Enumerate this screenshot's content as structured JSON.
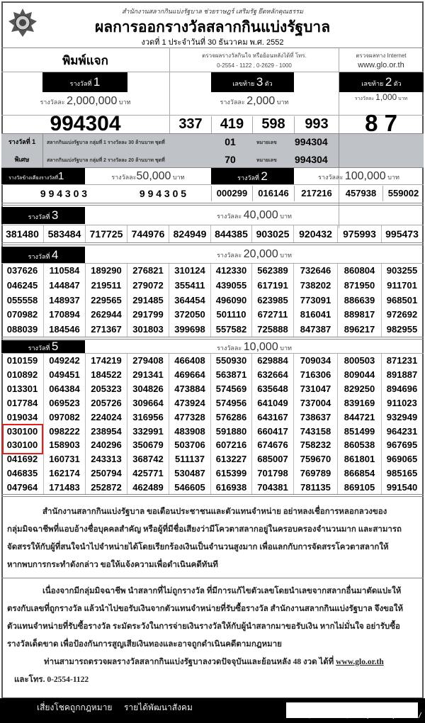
{
  "header": {
    "org_line": "สำนักงานสลากกินแบ่งรัฐบาล   ช่วยราษฎร์   เสริมรัฐ   ยึดหลักคุณธรรม",
    "title": "ผลการออกรางวัลสลากกินแบ่งรัฐบาล",
    "draw_line": "งวดที่  1   ประจำวันที่  30   ธันวาคม พ.ศ.  2552",
    "logo": "glo-emblem"
  },
  "info": {
    "free_print": "พิมพ์แจก",
    "phone_caption": "ตรวจผลรางวัลกินใจ หรือย้อนหลังได้ที่ โทร.",
    "phones": "0-2554 - 1122     ,     0-2629 - 1000",
    "internet_caption": "ตรวจผลทาง Internet",
    "website": "www.glo.or.th"
  },
  "prize1": {
    "label": "รางวัลที่",
    "no": "1",
    "amount_prefix": "รางวัลละ",
    "amount": "2,000,000",
    "unit": "บาท",
    "number": "994304"
  },
  "last3": {
    "label": "เลขท้าย",
    "no": "3",
    "suffix": "ตัว",
    "amount_prefix": "รางวัลละ",
    "amount": "2,000",
    "unit": "บาท",
    "numbers": [
      "337",
      "419",
      "598",
      "993"
    ]
  },
  "last2": {
    "label": "เลขท้าย",
    "no": "2",
    "suffix": "ตัว",
    "amount_prefix": "รางวัลละ",
    "amount": "1,000",
    "unit": "บาท",
    "number": "8 7"
  },
  "special": {
    "title1": "รางวัลที่ 1",
    "title2": "พิเศษ",
    "rows": [
      {
        "desc": "สลากกินแบ่งรัฐบาล กลุ่มที่ 1  รางวัลละ  30 ล้านบาท  ชุดที่",
        "set": "01",
        "num_label": "หมายเลข",
        "number": "994304"
      },
      {
        "desc": "สลากกินแบ่งรัฐบาล กลุ่มที่ 2  รางวัลละ  20 ล้านบาท  ชุดที่",
        "set": "70",
        "num_label": "หมายเลข",
        "number": "994304"
      }
    ]
  },
  "adjacent": {
    "label": "รางวัลข้างเคียงรางวัลที่",
    "no": "1",
    "amount_prefix": "รางวัลละ",
    "amount": "50,000",
    "unit": "บาท",
    "numbers": [
      "9 9 4 3 0 3",
      "9 9 4 3 0 5"
    ]
  },
  "prize2": {
    "label": "รางวัลที่",
    "no": "2",
    "amount_prefix": "รางวัลละ",
    "amount": "100,000",
    "unit": "บาท",
    "numbers": [
      "000299",
      "016146",
      "217216",
      "457938",
      "559002"
    ]
  },
  "prize3": {
    "label": "รางวัลที่",
    "no": "3",
    "amount_prefix": "รางวัลละ",
    "amount": "40,000",
    "unit": "บาท",
    "numbers": [
      "381480",
      "583484",
      "717725",
      "744976",
      "824949",
      "844385",
      "903025",
      "920432",
      "975993",
      "995473"
    ]
  },
  "prize4": {
    "label": "รางวัลที่",
    "no": "4",
    "amount_prefix": "รางวัลละ",
    "amount": "20,000",
    "unit": "บาท",
    "rows": [
      [
        "037626",
        "110584",
        "189290",
        "276821",
        "310124",
        "412330",
        "562389",
        "732646",
        "860804",
        "903255"
      ],
      [
        "046245",
        "144847",
        "219511",
        "279072",
        "355411",
        "439055",
        "617191",
        "738202",
        "871950",
        "911701"
      ],
      [
        "055558",
        "148937",
        "229565",
        "291485",
        "364454",
        "496090",
        "623985",
        "773091",
        "886639",
        "968501"
      ],
      [
        "070982",
        "170894",
        "262944",
        "291799",
        "372050",
        "501110",
        "672711",
        "816041",
        "889817",
        "972692"
      ],
      [
        "088039",
        "184546",
        "271367",
        "301803",
        "399698",
        "557582",
        "725888",
        "847387",
        "896217",
        "982955"
      ]
    ]
  },
  "prize5": {
    "label": "รางวัลที่",
    "no": "5",
    "amount_prefix": "รางวัลละ",
    "amount": "10,000",
    "unit": "บาท",
    "rows": [
      [
        "010159",
        "049242",
        "174219",
        "279408",
        "466408",
        "550930",
        "629884",
        "709034",
        "800503",
        "871231"
      ],
      [
        "010892",
        "049451",
        "184522",
        "291341",
        "469664",
        "563871",
        "632664",
        "716306",
        "809044",
        "891887"
      ],
      [
        "013301",
        "064384",
        "205323",
        "304826",
        "473884",
        "574569",
        "635648",
        "731047",
        "829250",
        "894696"
      ],
      [
        "017784",
        "069523",
        "205726",
        "309664",
        "473924",
        "574956",
        "641049",
        "737004",
        "839169",
        "911023"
      ],
      [
        "019034",
        "097082",
        "224024",
        "316956",
        "477328",
        "576286",
        "643167",
        "738637",
        "844721",
        "932949"
      ],
      [
        "030100",
        "098222",
        "238954",
        "332991",
        "483908",
        "591880",
        "660417",
        "743158",
        "851499",
        "964231"
      ],
      [
        "030100",
        "158903",
        "240296",
        "350679",
        "503706",
        "607216",
        "674676",
        "758232",
        "860538",
        "967695"
      ],
      [
        "041692",
        "160731",
        "243313",
        "368742",
        "511137",
        "613227",
        "685007",
        "759670",
        "861801",
        "969065"
      ],
      [
        "046835",
        "162174",
        "250794",
        "425771",
        "530487",
        "615399",
        "701798",
        "769789",
        "866854",
        "985165"
      ],
      [
        "047964",
        "171483",
        "252872",
        "462489",
        "546605",
        "616938",
        "704381",
        "781135",
        "869105",
        "991540"
      ]
    ],
    "highlight_color": "#e02020"
  },
  "notice": {
    "p1": [
      "สำนักงานสลากกินแบ่งรัฐบาล   ขอเตือนประชาชนและตัวแทนจำหน่าย  อย่าหลงเชื่อการหลอกลวงของ",
      "กลุ่มมิจฉาชีพที่แอบอ้างชื่อบุคคลสำคัญ หรือผู้ที่มีชื่อเสียงว่ามีโควตาสลากอยู่ในครอบครองจำนวนมาก และสามารถ",
      "จัดสรรให้กับผู้ที่สนใจนำไปจำหน่ายได้โดยเรียกร้องเงินเป็นจำนวนสูงมาก      เพื่อแลกกับการจัดสรรโควตาสลากให้",
      "หากพบการกระทำดังกล่าว ขอให้แจ้งความเพื่อดำเนินคดีทันที"
    ],
    "p2": [
      "เนื่องจากมีกลุ่มมิจฉาชีพ   นำสลากที่ไม่ถูกรางวัล   ที่มีการแก้ไขตัวเลขโดยนำเลขจากสลากอื่นมาตัดแปะให้",
      "ตรงกับเลขที่ถูกรางวัล แล้วนำไปขอรับเงินจากตัวแทนจำหน่ายที่รับซื้อรางวัล สำนักงานสลากกินแบ่งรัฐบาล จึงขอให้",
      "ตัวแทนจำหน่ายที่รับซื้อรางวัล  ระมัดระวังในการจ่ายเงินรางวัลให้กับผู้นำสลากมาขอรับเงิน  หากไม่มั่นใจ อย่ารับซื้อ",
      "รางวัลเด็ดขาด เพื่อป้องกันการสูญเสียเงินทองและอาจถูกดำเนินคดีตามกฎหมาย"
    ],
    "p3": "ท่านสามารถตรวจผลรางวัลสลากกินแบ่งรัฐบาลงวดปัจจุบันและย้อนหลัง 48 งวด ได้ที่",
    "p3_link": "www.glo.or.th",
    "p4": "และโทร. 0-2554-1122"
  },
  "footer": {
    "slogan1": "เสี่ยงโชคถูกกฎหมาย",
    "slogan2": "รายได้พัฒนาสังคม",
    "watermark": "[765x1281] https://upic.me/"
  }
}
